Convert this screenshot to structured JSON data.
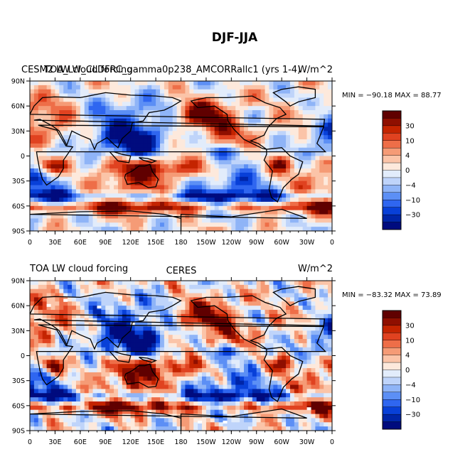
{
  "colors": {
    "scale": [
      "#000b7e",
      "#0025a8",
      "#0840d8",
      "#2f66f0",
      "#5c8ff5",
      "#8fb4f7",
      "#bfd4fa",
      "#e2ecfb",
      "#fde9dc",
      "#fbc4a8",
      "#f59b76",
      "#ee6e48",
      "#e04220",
      "#c42400",
      "#8f0f00",
      "#600000"
    ],
    "land": "#000000"
  },
  "chart_data": {
    "type": "heatmap",
    "title": "DJF-JJA",
    "xticks": [
      "0",
      "30E",
      "60E",
      "90E",
      "120E",
      "150E",
      "180",
      "150W",
      "120W",
      "90W",
      "60W",
      "30W",
      "0"
    ],
    "yticks": [
      "90N",
      "60N",
      "30N",
      "0",
      "30S",
      "60S",
      "90S"
    ],
    "colorbar_ticks": [
      "30",
      "10",
      "4",
      "0",
      "−4",
      "−10",
      "−30"
    ],
    "units": "W/m^2",
    "panels": [
      {
        "left_title": "CESM2 LW cloud forcing",
        "overlap_text": "TOA_LW_CLDFRC_gamma0p238_AMCORRallc1 (yrs 1-4)",
        "right_title": "W/m^2",
        "center_title": "",
        "min": -90.18,
        "max": 88.77,
        "minmax_text": "MIN = −90.18  MAX =  88.77"
      },
      {
        "left_title": "TOA LW cloud forcing",
        "overlap_text": "",
        "right_title": "W/m^2",
        "center_title": "CERES",
        "min": -83.32,
        "max": 73.89,
        "minmax_text": "MIN = −83.32  MAX =  73.89"
      }
    ]
  }
}
